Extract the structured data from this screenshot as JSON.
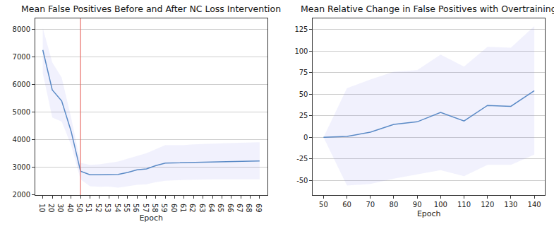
{
  "chart_data": [
    {
      "type": "line",
      "title": "Mean False Positives Before and After NC Loss Intervention",
      "x_label": "Epoch",
      "categories": [
        "10",
        "20",
        "30",
        "40",
        "50",
        "51",
        "52",
        "53",
        "54",
        "55",
        "56",
        "57",
        "58",
        "59",
        "60",
        "61",
        "62",
        "63",
        "64",
        "65",
        "66",
        "67",
        "68",
        "69"
      ],
      "series": [
        {
          "color": "#5a8ac6",
          "values": [
            7250,
            5800,
            5400,
            4300,
            2850,
            2720,
            2720,
            2730,
            2730,
            2800,
            2900,
            2930,
            3050,
            3140,
            3150,
            3160,
            3170,
            3180,
            3190,
            3200,
            3210,
            3210,
            3215,
            3220
          ],
          "upper": [
            8050,
            6800,
            6250,
            4800,
            3150,
            3080,
            3100,
            3150,
            3200,
            3300,
            3400,
            3500,
            3650,
            3800,
            3800,
            3800,
            3820,
            3840,
            3850,
            3860,
            3870,
            3880,
            3890,
            3900
          ],
          "lower": [
            6400,
            4800,
            4650,
            3800,
            2550,
            2300,
            2280,
            2290,
            2250,
            2300,
            2350,
            2370,
            2450,
            2500,
            2520,
            2530,
            2540,
            2550,
            2550,
            2550,
            2550,
            2550,
            2550,
            2550
          ]
        }
      ],
      "reference_line": {
        "x": "50",
        "color": "#e8726b"
      },
      "ylim": [
        1980,
        8400
      ],
      "yticks": [
        2000,
        3000,
        4000,
        5000,
        6000,
        7000,
        8000
      ],
      "grid": "y"
    },
    {
      "type": "line",
      "title": "Mean Relative Change in False Positives with Overtraining",
      "x_label": "Epoch",
      "x": [
        50,
        60,
        70,
        80,
        90,
        100,
        110,
        120,
        130,
        140
      ],
      "series": [
        {
          "color": "#5a8ac6",
          "values": [
            0,
            1,
            6,
            15,
            18,
            29,
            19,
            37,
            36,
            54
          ],
          "upper": [
            0,
            57,
            67,
            76,
            78,
            96,
            82,
            105,
            104,
            129
          ],
          "lower": [
            0,
            -56,
            -54,
            -48,
            -43,
            -38,
            -45,
            -32,
            -32,
            -20
          ]
        }
      ],
      "xlim": [
        45.5,
        144.5
      ],
      "xticks": [
        50,
        60,
        70,
        80,
        90,
        100,
        110,
        120,
        130,
        140
      ],
      "ylim": [
        -67,
        138
      ],
      "yticks": [
        -50,
        -25,
        0,
        25,
        50,
        75,
        100,
        125
      ],
      "grid": "y"
    }
  ]
}
